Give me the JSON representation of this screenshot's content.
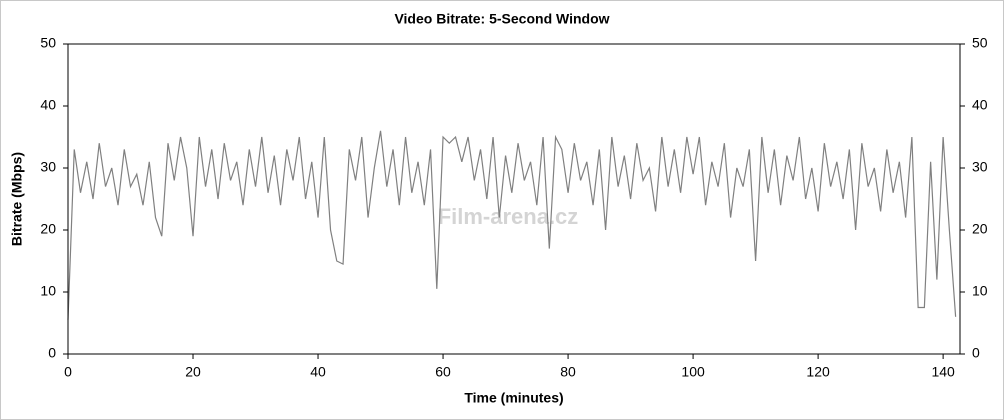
{
  "chart_data": {
    "type": "line",
    "title": "Video Bitrate: 5-Second Window",
    "xlabel": "Time (minutes)",
    "ylabel": "Bitrate (Mbps)",
    "watermark": "Film-arena.cz",
    "x": [
      0,
      1,
      2,
      3,
      4,
      5,
      6,
      7,
      8,
      9,
      10,
      11,
      12,
      13,
      14,
      15,
      16,
      17,
      18,
      19,
      20,
      21,
      22,
      23,
      24,
      25,
      26,
      27,
      28,
      29,
      30,
      31,
      32,
      33,
      34,
      35,
      36,
      37,
      38,
      39,
      40,
      41,
      42,
      43,
      44,
      45,
      46,
      47,
      48,
      49,
      50,
      51,
      52,
      53,
      54,
      55,
      56,
      57,
      58,
      59,
      60,
      61,
      62,
      63,
      64,
      65,
      66,
      67,
      68,
      69,
      70,
      71,
      72,
      73,
      74,
      75,
      76,
      77,
      78,
      79,
      80,
      81,
      82,
      83,
      84,
      85,
      86,
      87,
      88,
      89,
      90,
      91,
      92,
      93,
      94,
      95,
      96,
      97,
      98,
      99,
      100,
      101,
      102,
      103,
      104,
      105,
      106,
      107,
      108,
      109,
      110,
      111,
      112,
      113,
      114,
      115,
      116,
      117,
      118,
      119,
      120,
      121,
      122,
      123,
      124,
      125,
      126,
      127,
      128,
      129,
      130,
      131,
      132,
      133,
      134,
      135,
      136,
      137,
      138,
      139,
      140,
      141,
      142
    ],
    "series": [
      {
        "name": "Video Bitrate",
        "color": "#808080",
        "values": [
          5.5,
          33,
          26,
          31,
          25,
          34,
          27,
          30,
          24,
          33,
          27,
          29,
          24,
          31,
          22,
          19,
          34,
          28,
          35,
          30,
          19,
          35,
          27,
          33,
          25,
          34,
          28,
          31,
          24,
          33,
          27,
          35,
          26,
          32,
          24,
          33,
          28,
          35,
          25,
          31,
          22,
          35,
          20,
          15,
          14.5,
          33,
          28,
          35,
          22,
          30,
          36,
          27,
          33,
          24,
          35,
          26,
          31,
          24,
          33,
          10.5,
          35,
          34,
          35,
          31,
          35,
          28,
          33,
          25,
          35,
          22,
          32,
          26,
          34,
          28,
          31,
          24,
          35,
          17,
          35,
          33,
          26,
          34,
          28,
          31,
          24,
          33,
          20,
          35,
          27,
          32,
          25,
          34,
          28,
          30,
          23,
          35,
          27,
          33,
          26,
          35,
          29,
          35,
          24,
          31,
          27,
          34,
          22,
          30,
          27,
          33,
          15,
          35,
          26,
          33,
          24,
          32,
          28,
          35,
          25,
          30,
          23,
          34,
          27,
          31,
          25,
          33,
          20,
          34,
          27,
          30,
          23,
          33,
          26,
          31,
          22,
          35,
          7.5,
          7.5,
          31,
          12,
          35,
          20,
          6
        ]
      }
    ],
    "xlim": [
      0,
      142.7
    ],
    "xticks": [
      0,
      20,
      40,
      60,
      80,
      100,
      120,
      140
    ],
    "ylim": [
      0,
      50
    ],
    "yticks": [
      0,
      10,
      20,
      30,
      40,
      50
    ],
    "y2lim": [
      0,
      50
    ],
    "y2ticks": [
      0,
      10,
      20,
      30,
      40,
      50
    ]
  }
}
